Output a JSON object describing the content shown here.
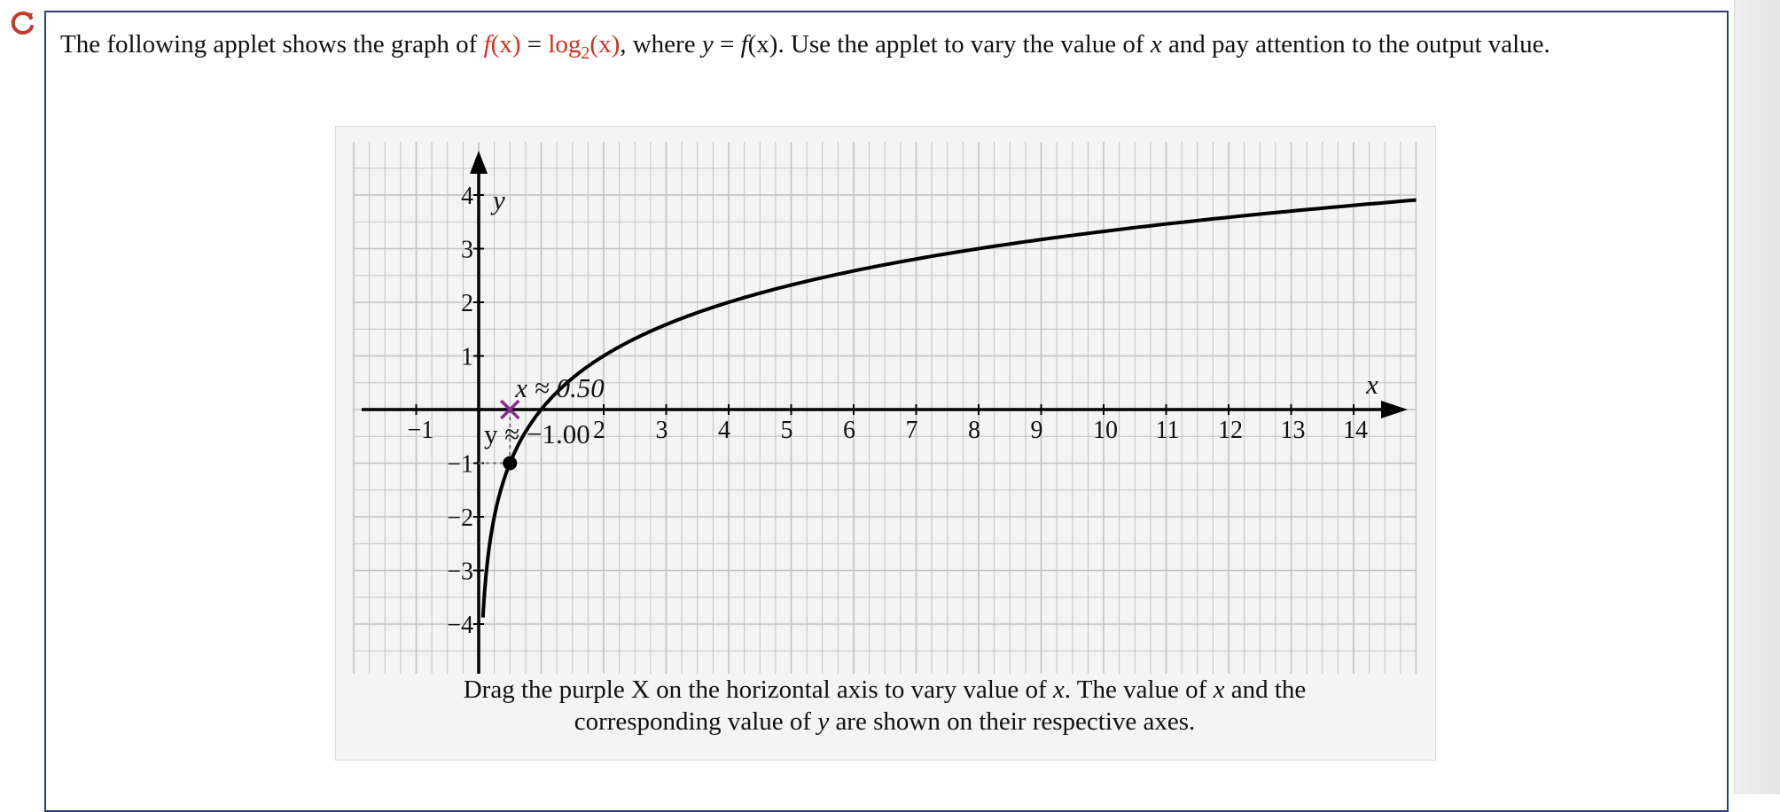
{
  "prompt": {
    "lead": "The following applet shows the graph of ",
    "fx": "f",
    "fx_arg": "(x)",
    "equals": " = ",
    "log": "log",
    "log_base": "2",
    "log_arg": "(x)",
    "comma_where": ", where ",
    "y": "y",
    "f2": "f",
    "f2_arg": "(x)",
    "tail_1": ". Use the applet to vary the value of ",
    "x": "x",
    "tail_2": " and pay attention to the output value."
  },
  "applet": {
    "x_axis_label": "x",
    "y_axis_label": "y",
    "x_ticks": [
      "−1",
      "2",
      "3",
      "4",
      "5",
      "6",
      "7",
      "8",
      "9",
      "10",
      "11",
      "12",
      "13",
      "14"
    ],
    "y_ticks": [
      "4",
      "3",
      "2",
      "1",
      "−1",
      "−2",
      "−3",
      "−4"
    ],
    "x_readout": "x ≈ 0.50",
    "y_readout": "y ≈ −1.00",
    "handle_x": 0.5,
    "handle_y": -1.0,
    "colors": {
      "handle": "#8e2c8e",
      "curve": "#000000",
      "grid": "#c2c2c2",
      "accent_text": "#d2301f"
    },
    "caption_line1_a": "Drag the purple X on the horizontal axis to vary value of ",
    "caption_x1": "x",
    "caption_line1_b": ". The value of ",
    "caption_x2": "x",
    "caption_line1_c": " and the",
    "caption_line2_a": "corresponding value of ",
    "caption_y": "y",
    "caption_line2_b": " are shown on their respective axes."
  },
  "chart_data": {
    "type": "line",
    "function": "log2(x)",
    "series": [
      {
        "x": [
          0.07,
          0.125,
          0.25,
          0.5,
          1,
          2,
          3,
          4,
          6,
          8,
          10,
          12,
          14,
          15
        ],
        "y": [
          -3.84,
          -3,
          -2,
          -1,
          0,
          1,
          1.585,
          2,
          2.585,
          3,
          3.32,
          3.585,
          3.81,
          3.91
        ]
      }
    ],
    "xlabel": "x",
    "ylabel": "y",
    "xlim": [
      -2,
      15
    ],
    "ylim": [
      -5,
      5
    ],
    "grid": true
  },
  "icons": {
    "reload": "reload-icon"
  }
}
